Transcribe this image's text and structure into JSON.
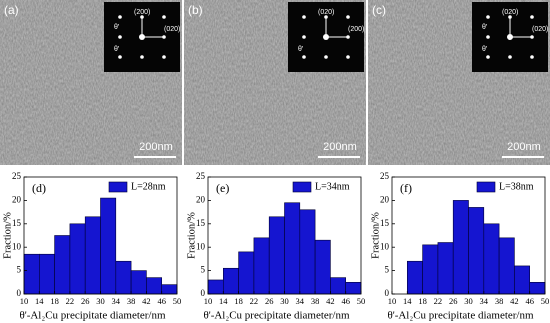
{
  "images": [
    {
      "label": "(a)",
      "scale": "200nm",
      "inset_labels": [
        "(200)",
        "(020)",
        "θ'",
        "θ'"
      ]
    },
    {
      "label": "(b)",
      "scale": "200nm",
      "inset_labels": [
        "(020)",
        "(200)",
        "θ'"
      ]
    },
    {
      "label": "(c)",
      "scale": "200nm",
      "inset_labels": [
        "(020)",
        "(020)",
        "θ'",
        "θ'"
      ]
    }
  ],
  "chart_data": [
    {
      "type": "histogram",
      "panel_label": "(d)",
      "xlabel": "θ'-Al₂Cu precipitate diameter/nm",
      "ylabel": "Fraction/%",
      "bins": [
        10,
        14,
        18,
        22,
        26,
        30,
        34,
        38,
        42,
        46,
        50
      ],
      "series": [
        {
          "name": "L=28nm",
          "color": "#1515d0",
          "values": [
            8.5,
            8.5,
            12.5,
            15,
            16.5,
            20.5,
            7,
            5,
            3.5,
            2
          ]
        }
      ],
      "xlim": [
        10,
        50
      ],
      "xticks": [
        10,
        14,
        18,
        22,
        26,
        30,
        34,
        38,
        42,
        46,
        50
      ],
      "ylim": [
        0,
        25
      ],
      "yticks": [
        0,
        5,
        10,
        15,
        20,
        25
      ]
    },
    {
      "type": "histogram",
      "panel_label": "(e)",
      "xlabel": "θ'-Al₂Cu precipitate diameter/nm",
      "ylabel": "Fraction/%",
      "bins": [
        10,
        14,
        18,
        22,
        26,
        30,
        34,
        38,
        42,
        46,
        50
      ],
      "series": [
        {
          "name": "L=34nm",
          "color": "#1515d0",
          "values": [
            3,
            5.5,
            9,
            12,
            16.5,
            19.5,
            18,
            11.5,
            3.5,
            2.5
          ]
        }
      ],
      "xlim": [
        10,
        50
      ],
      "xticks": [
        10,
        14,
        18,
        22,
        26,
        30,
        34,
        38,
        42,
        46,
        50
      ],
      "ylim": [
        0,
        25
      ],
      "yticks": [
        0,
        5,
        10,
        15,
        20,
        25
      ]
    },
    {
      "type": "histogram",
      "panel_label": "(f)",
      "xlabel": "θ'-Al₂Cu precipitate diameter/nm",
      "ylabel": "Fraction/%",
      "bins": [
        10,
        14,
        18,
        22,
        26,
        30,
        34,
        38,
        42,
        46,
        50
      ],
      "series": [
        {
          "name": "L=38nm",
          "color": "#1515d0",
          "values": [
            0,
            7,
            10.5,
            11,
            20,
            18.5,
            15,
            12,
            6,
            2.5
          ]
        }
      ],
      "xlim": [
        10,
        50
      ],
      "xticks": [
        10,
        14,
        18,
        22,
        26,
        30,
        34,
        38,
        42,
        46,
        50
      ],
      "ylim": [
        0,
        25
      ],
      "yticks": [
        0,
        5,
        10,
        15,
        20,
        25
      ]
    }
  ]
}
